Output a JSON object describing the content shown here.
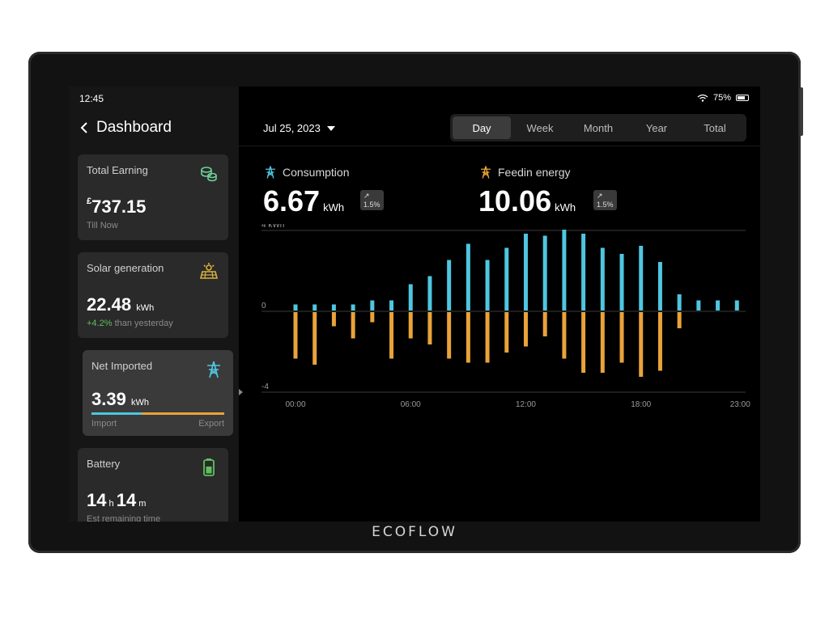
{
  "status": {
    "time": "12:45",
    "battery": "75%"
  },
  "nav": {
    "back_title": "Dashboard"
  },
  "cards": {
    "total_earning": {
      "title": "Total Earning",
      "currency": "£",
      "value": "737.15",
      "sub": "Till Now"
    },
    "solar": {
      "title": "Solar generation",
      "value": "22.48",
      "unit": "kWh",
      "change": "+4.2%",
      "sub": "than yesterday"
    },
    "net": {
      "title": "Net Imported",
      "value": "3.39",
      "unit": "kWh",
      "import_label": "Import",
      "export_label": "Export"
    },
    "battery": {
      "title": "Battery",
      "hours": "14",
      "h_unit": "h",
      "minutes": "14",
      "m_unit": "m",
      "sub": "Est remaining time"
    }
  },
  "main": {
    "date": "Jul 25, 2023",
    "tabs": [
      "Day",
      "Week",
      "Month",
      "Year",
      "Total"
    ],
    "active_tab": "Day",
    "consumption": {
      "label": "Consumption",
      "value": "6.67",
      "unit": "kWh",
      "badge": "↗ 1.5%"
    },
    "feedin": {
      "label": "Feedin energy",
      "value": "10.06",
      "unit": "kWh",
      "badge": "↗ 1.5%"
    }
  },
  "brand": "ECOFLOW",
  "colors": {
    "consumption": "#4fc6e0",
    "feedin": "#e8a33a"
  },
  "chart_data": {
    "type": "bar",
    "ylim": [
      -4,
      4
    ],
    "y_ticks": [
      "4 kWh",
      "0",
      "-4"
    ],
    "x_ticks": [
      "00:00",
      "06:00",
      "12:00",
      "18:00",
      "23:00"
    ],
    "x": [
      0,
      1,
      2,
      3,
      4,
      5,
      6,
      7,
      8,
      9,
      10,
      11,
      12,
      13,
      14,
      15,
      16,
      17,
      18,
      19,
      20,
      21,
      22,
      23
    ],
    "series": [
      {
        "values": [
          0.3,
          0.3,
          0.3,
          0.3,
          0.5,
          0.5,
          1.3,
          1.7,
          2.5,
          3.3,
          2.5,
          3.1,
          3.8,
          3.7,
          4.0,
          3.8,
          3.1,
          2.8,
          3.2,
          2.4,
          0.8,
          0.5,
          0.5,
          0.5
        ]
      },
      {
        "values": [
          -2.3,
          -2.6,
          -0.7,
          -1.3,
          -0.5,
          -2.3,
          -1.3,
          -1.6,
          -2.3,
          -2.5,
          -2.5,
          -2.0,
          -1.7,
          -1.2,
          -2.3,
          -3.0,
          -3.0,
          -2.5,
          -3.2,
          -2.9,
          -0.8,
          0,
          0,
          0
        ]
      }
    ]
  }
}
